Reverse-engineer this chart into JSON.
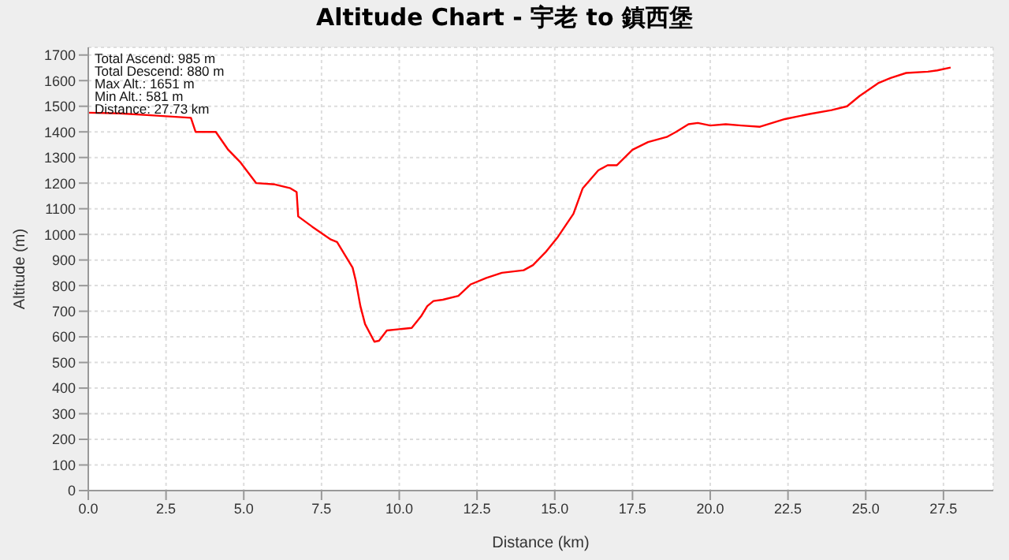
{
  "chart_data": {
    "type": "line",
    "title": "Altitude Chart - 宇老 to 鎮西堡",
    "xlabel": "Distance (km)",
    "ylabel": "Altitude (m)",
    "annotations": [
      "Total Ascend: 985 m",
      "Total Descend: 880 m",
      "Max Alt.: 1651 m",
      "Min Alt.: 581 m",
      "Distance: 27.73 km"
    ],
    "x": [
      0,
      1.0,
      2.0,
      3.3,
      3.45,
      4.1,
      4.5,
      4.9,
      5.4,
      6.0,
      6.5,
      6.7,
      6.75,
      7.2,
      7.8,
      8.0,
      8.2,
      8.5,
      8.6,
      8.75,
      8.9,
      9.2,
      9.35,
      9.6,
      10.0,
      10.4,
      10.7,
      10.9,
      11.1,
      11.4,
      11.9,
      12.3,
      12.8,
      13.3,
      14.0,
      14.3,
      14.7,
      15.1,
      15.6,
      15.9,
      16.4,
      16.7,
      17.0,
      17.5,
      18.0,
      18.6,
      18.9,
      19.3,
      19.6,
      20.0,
      20.5,
      21.0,
      21.6,
      22.4,
      23.2,
      23.9,
      24.4,
      24.8,
      25.4,
      25.8,
      26.3,
      27.0,
      27.3,
      27.73
    ],
    "series": [
      {
        "color": "#ff0000",
        "values": [
          1475,
          1472,
          1465,
          1455,
          1400,
          1400,
          1330,
          1280,
          1200,
          1195,
          1180,
          1165,
          1070,
          1030,
          980,
          970,
          930,
          870,
          820,
          720,
          650,
          581,
          585,
          625,
          630,
          635,
          680,
          720,
          740,
          745,
          760,
          805,
          830,
          850,
          860,
          880,
          930,
          990,
          1080,
          1180,
          1250,
          1270,
          1270,
          1330,
          1360,
          1380,
          1400,
          1430,
          1435,
          1425,
          1430,
          1425,
          1420,
          1450,
          1470,
          1485,
          1500,
          1540,
          1590,
          1610,
          1630,
          1635,
          1640,
          1651
        ]
      }
    ],
    "xlim": [
      0,
      29.1
    ],
    "ylim": [
      0,
      1730
    ],
    "xticks": [
      {
        "value": 0,
        "label": "0.0"
      },
      2.5,
      {
        "value": 5,
        "label": "5.0"
      },
      7.5,
      {
        "value": 10,
        "label": "10.0"
      },
      12.5,
      {
        "value": 15,
        "label": "15.0"
      },
      17.5,
      {
        "value": 20,
        "label": "20.0"
      },
      22.5,
      {
        "value": 25,
        "label": "25.0"
      },
      27.5
    ],
    "yticks": [
      0,
      100,
      200,
      300,
      400,
      500,
      600,
      700,
      800,
      900,
      1000,
      1100,
      1200,
      1300,
      1400,
      1500,
      1600,
      1700
    ],
    "grid": true,
    "marker": "none",
    "line_style": "solid"
  }
}
